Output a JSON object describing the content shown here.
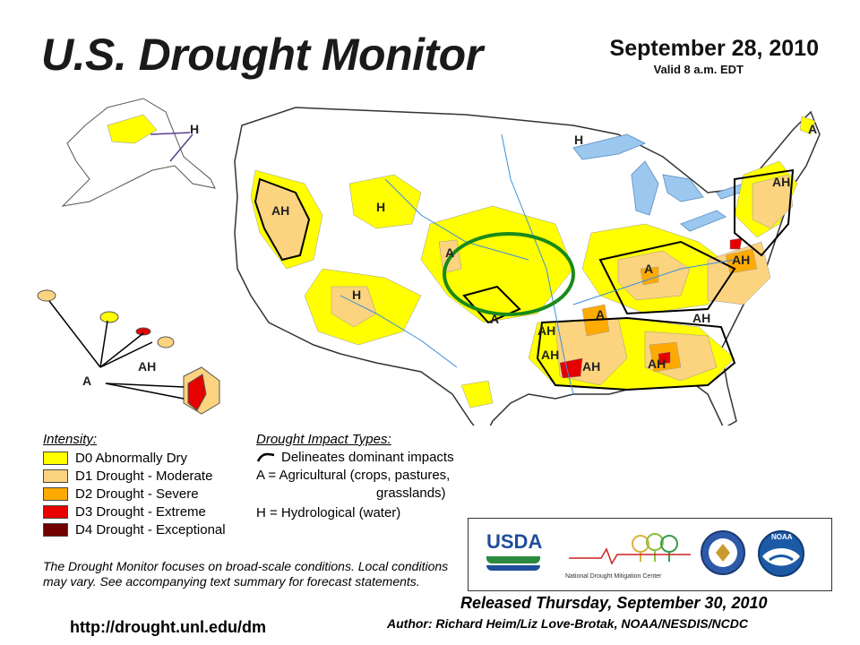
{
  "header": {
    "title": "U.S. Drought Monitor",
    "date": "September 28, 2010",
    "valid": "Valid 8 a.m. EDT"
  },
  "map_labels": {
    "ak_h": "H",
    "hi_a": "A",
    "hi_ah": "AH",
    "nv_ah": "AH",
    "wy_h": "H",
    "az_h": "H",
    "ne_a": "A",
    "ks_a": "A",
    "ok_ah": "AH",
    "la_ah": "AH",
    "ms_ah": "AH",
    "ga_ah": "AH",
    "nc_ah": "AH",
    "va_ah": "AH",
    "ky_a": "A",
    "tn_a": "A",
    "ne_coast_ah": "AH",
    "me_a": "A",
    "mn_h": "H"
  },
  "legend": {
    "intensity_title": "Intensity:",
    "items": [
      {
        "label": "D0 Abnormally Dry",
        "color": "#ffff00"
      },
      {
        "label": "D1 Drought - Moderate",
        "color": "#fcd37f"
      },
      {
        "label": "D2 Drought - Severe",
        "color": "#ffaa00"
      },
      {
        "label": "D3 Drought - Extreme",
        "color": "#e60000"
      },
      {
        "label": "D4 Drought - Exceptional",
        "color": "#730000"
      }
    ],
    "impact_title": "Drought Impact Types:",
    "impact_lines": [
      "Delineates dominant impacts",
      "A = Agricultural (crops, pastures,",
      "grasslands)",
      "H = Hydrological (water)"
    ]
  },
  "note": "The Drought Monitor focuses on broad-scale conditions. Local conditions may vary. See accompanying text summary for forecast statements.",
  "url": "http://drought.unl.edu/dm",
  "logos": {
    "usda": "USDA",
    "ndmc": "National Drought Mitigation Center",
    "noaa": "NOAA"
  },
  "footer": {
    "released": "Released Thursday, September 30, 2010",
    "author": "Author: Richard Heim/Liz Love-Brotak, NOAA/NESDIS/NCDC"
  },
  "colors": {
    "d0": "#ffff00",
    "d1": "#fcd37f",
    "d2": "#ffaa00",
    "d3": "#e60000",
    "d4": "#730000",
    "water": "#9cc8f0",
    "highlight_ellipse": "#1a8a1a"
  }
}
